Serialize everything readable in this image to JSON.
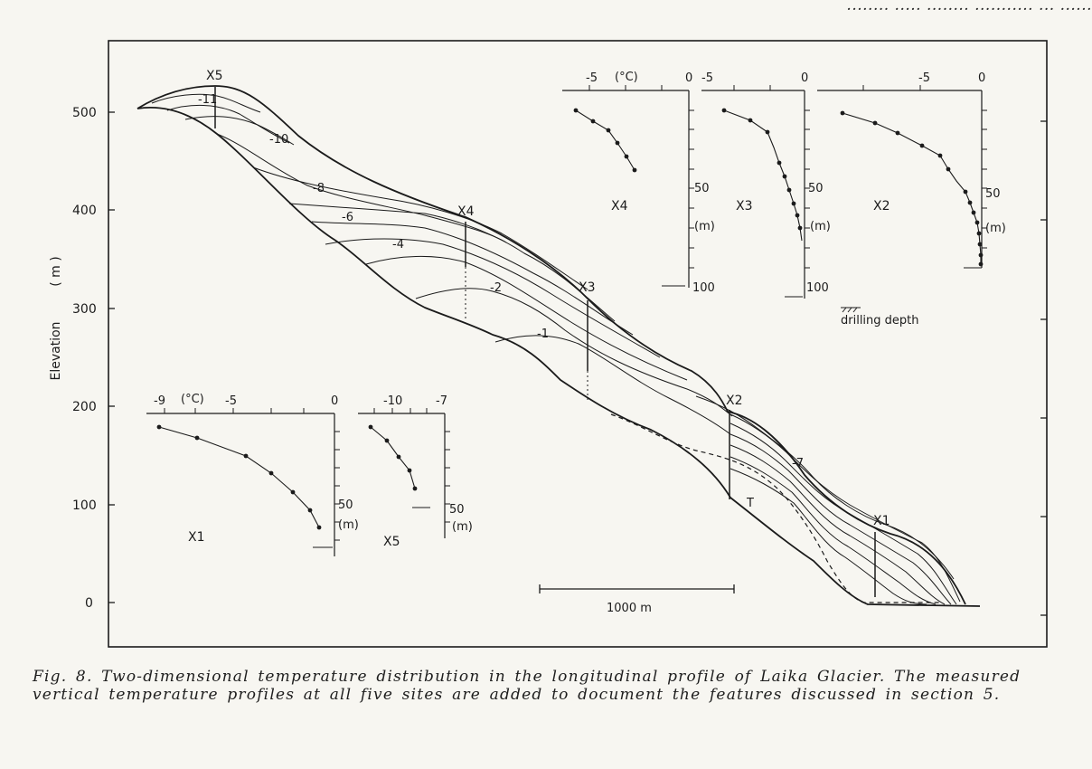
{
  "header_fragment": "........ ..... ........ ........... ... ......",
  "figure": {
    "y_axis_label": "Elevation",
    "y_axis_unit": "( m )",
    "y_ticks": [
      "500",
      "400",
      "300",
      "200",
      "100",
      "0"
    ],
    "sites": [
      "X5",
      "X4",
      "X3",
      "X2",
      "X1"
    ],
    "isotherm_labels": [
      "-11",
      "-10",
      "-8",
      "-6",
      "-4",
      "-2",
      "-1",
      "-7",
      "T"
    ],
    "scale_bar": "1000 m",
    "drilling_depth_label": "drilling depth",
    "insets": {
      "x4": {
        "name": "X4",
        "top_ticks": [
          "-5",
          "(°C)",
          "0"
        ],
        "depth_ticks": [
          "50",
          "(m)",
          "100"
        ]
      },
      "x3": {
        "name": "X3",
        "top_ticks": [
          "-5",
          "0"
        ],
        "depth_ticks": [
          "50",
          "(m)",
          "100"
        ]
      },
      "x2": {
        "name": "X2",
        "top_ticks": [
          "-5",
          "0"
        ],
        "depth_ticks": [
          "50",
          "(m)"
        ]
      },
      "x1": {
        "name": "X1",
        "top_ticks": [
          "-9",
          "(°C)",
          "-5",
          "0"
        ],
        "depth_ticks": [
          "50",
          "(m)"
        ]
      },
      "x5": {
        "name": "X5",
        "top_ticks": [
          "-10",
          "-7"
        ],
        "depth_ticks": [
          "50",
          "(m)"
        ]
      }
    }
  },
  "caption": "Fig. 8. Two-dimensional temperature distribution in the longitudinal profile of Laika Glacier. The measured vertical temperature profiles at all five sites are added to document the features discussed in section 5."
}
